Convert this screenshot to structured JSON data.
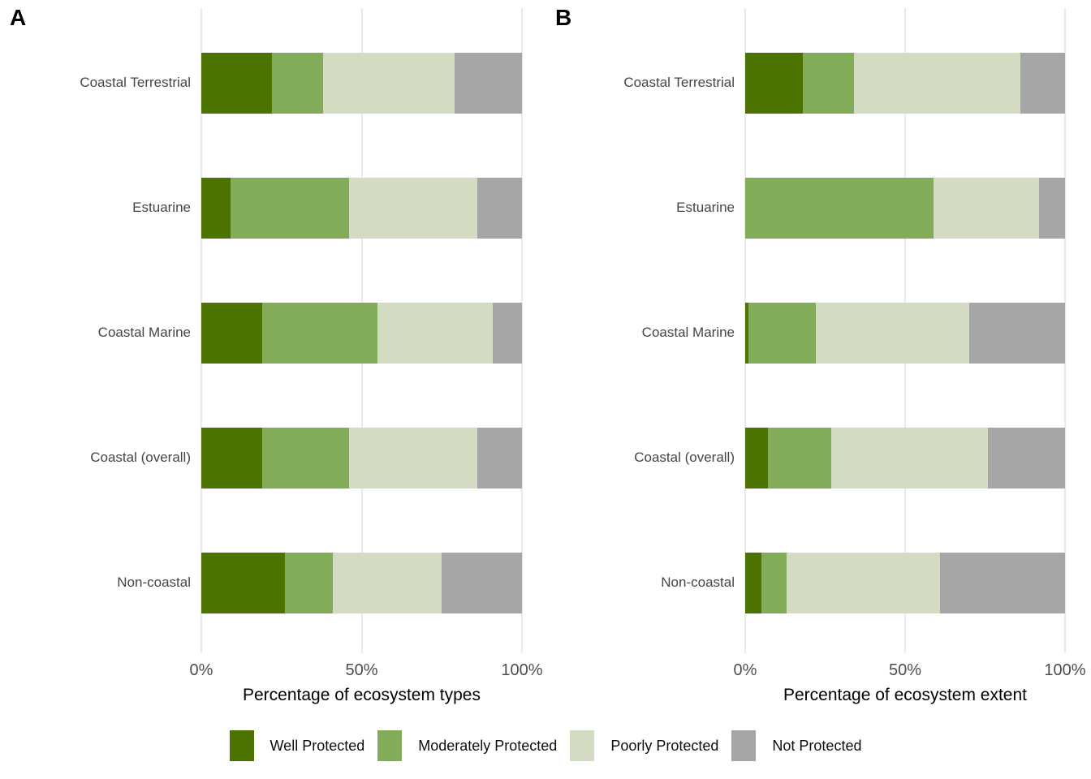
{
  "chart_data": [
    {
      "type": "bar",
      "stacked": true,
      "orientation": "horizontal",
      "panel_label": "A",
      "xlabel": "Percentage of ecosystem types",
      "xlim": [
        0,
        100
      ],
      "xtick_labels": [
        "0%",
        "50%",
        "100%"
      ],
      "xtick_positions": [
        0,
        50,
        100
      ],
      "grid": "vertical-major",
      "categories": [
        "Coastal Terrestrial",
        "Estuarine",
        "Coastal Marine",
        "Coastal (overall)",
        "Non-coastal"
      ],
      "series": [
        {
          "name": "Well Protected",
          "color": "#4c7300",
          "values": [
            22,
            9,
            19,
            19,
            26
          ]
        },
        {
          "name": "Moderately Protected",
          "color": "#82ac57",
          "values": [
            16,
            37,
            36,
            27,
            15
          ]
        },
        {
          "name": "Poorly Protected",
          "color": "#d4dbc3",
          "values": [
            41,
            40,
            36,
            40,
            34
          ]
        },
        {
          "name": "Not Protected",
          "color": "#a6a6a6",
          "values": [
            21,
            14,
            9,
            14,
            25
          ]
        }
      ]
    },
    {
      "type": "bar",
      "stacked": true,
      "orientation": "horizontal",
      "panel_label": "B",
      "xlabel": "Percentage of ecosystem extent",
      "xlim": [
        0,
        100
      ],
      "xtick_labels": [
        "0%",
        "50%",
        "100%"
      ],
      "xtick_positions": [
        0,
        50,
        100
      ],
      "grid": "vertical-major",
      "categories": [
        "Coastal Terrestrial",
        "Estuarine",
        "Coastal Marine",
        "Coastal (overall)",
        "Non-coastal"
      ],
      "series": [
        {
          "name": "Well Protected",
          "color": "#4c7300",
          "values": [
            18,
            0,
            1,
            7,
            5
          ]
        },
        {
          "name": "Moderately Protected",
          "color": "#82ac57",
          "values": [
            16,
            59,
            21,
            20,
            8
          ]
        },
        {
          "name": "Poorly Protected",
          "color": "#d4dbc3",
          "values": [
            52,
            33,
            48,
            49,
            48
          ]
        },
        {
          "name": "Not Protected",
          "color": "#a6a6a6",
          "values": [
            14,
            8,
            30,
            24,
            39
          ]
        }
      ]
    }
  ],
  "legend": {
    "position": "bottom",
    "items": [
      "Well Protected",
      "Moderately Protected",
      "Poorly Protected",
      "Not Protected"
    ]
  }
}
